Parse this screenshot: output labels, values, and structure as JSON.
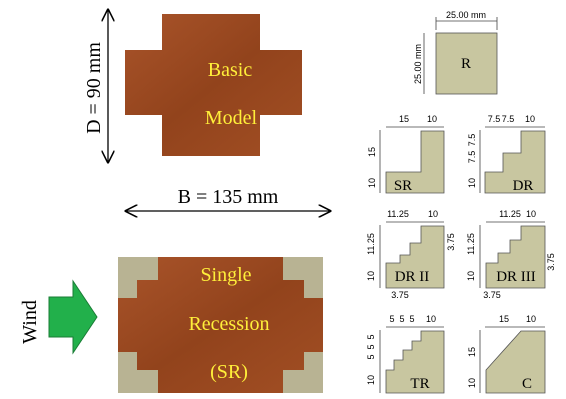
{
  "models": {
    "basic": {
      "line1": "Basic",
      "line2": "Model"
    },
    "single": {
      "line1": "Single",
      "line2": "Recession",
      "line3": "(SR)"
    }
  },
  "dimensions": {
    "depth": "D = 90 mm",
    "breadth": "B = 135 mm"
  },
  "wind_label": "Wind",
  "corners": {
    "R": {
      "label": "R",
      "top": "25.00 mm",
      "side": "25.00 mm"
    },
    "SR": {
      "label": "SR",
      "top": [
        "15",
        "10"
      ],
      "side": [
        "15",
        "10"
      ]
    },
    "DR": {
      "label": "DR",
      "top": [
        "7.5",
        "7.5",
        "10"
      ],
      "side": [
        "7.5",
        "7.5",
        "10"
      ]
    },
    "DRII": {
      "label": "DR II",
      "top": [
        "11.25",
        "10"
      ],
      "side": [
        "11.25",
        "10"
      ],
      "right": "3.75",
      "bottom": "3.75"
    },
    "DRIII": {
      "label": "DR III",
      "top": [
        "11.25",
        "10"
      ],
      "side": [
        "11.25",
        "10"
      ],
      "right": "3.75",
      "bottom": "3.75"
    },
    "TR": {
      "label": "TR",
      "top": [
        "5",
        "5",
        "5",
        "10"
      ],
      "side": [
        "5",
        "5",
        "5",
        "10"
      ]
    },
    "C": {
      "label": "C",
      "top": [
        "15",
        "10"
      ],
      "side": [
        "15",
        "10"
      ]
    }
  },
  "colors": {
    "wood": "#9a4a1f",
    "recess": "#b8b393",
    "corner_fill": "#c8c6a0",
    "label_yellow": "#ffef3a",
    "wind_green": "#22b04b"
  }
}
